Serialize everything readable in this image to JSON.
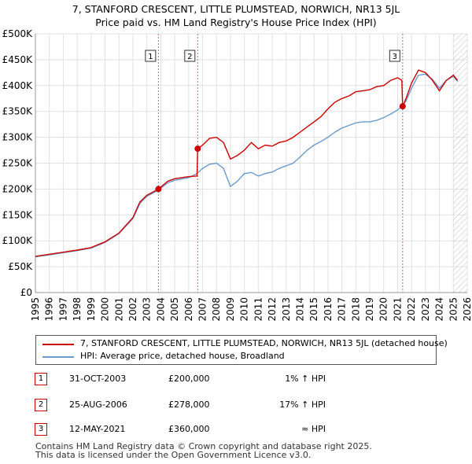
{
  "title_line1": "7, STANFORD CRESCENT, LITTLE PLUMSTEAD, NORWICH, NR13 5JL",
  "title_line2": "Price paid vs. HM Land Registry's House Price Index (HPI)",
  "colors": {
    "property": "#cc0000",
    "hpi": "#6a9bcc",
    "grid": "#e1e1e1",
    "marker_line": "#e06666",
    "future_hatch": "#aaaaaa"
  },
  "legend": {
    "property_label": "7, STANFORD CRESCENT, LITTLE PLUMSTEAD, NORWICH, NR13 5JL (detached house)",
    "hpi_label": "HPI: Average price, detached house, Broadland"
  },
  "sales": [
    {
      "num": "1",
      "date": "31-OCT-2003",
      "price": "£200,000",
      "hpi": "1% ↑ HPI"
    },
    {
      "num": "2",
      "date": "25-AUG-2006",
      "price": "£278,000",
      "hpi": "17% ↑ HPI"
    },
    {
      "num": "3",
      "date": "12-MAY-2021",
      "price": "£360,000",
      "hpi": "≈ HPI"
    }
  ],
  "footer": {
    "line1": "Contains HM Land Registry data © Crown copyright and database right 2025.",
    "line2": "This data is licensed under the Open Government Licence v3.0."
  },
  "chart_data": {
    "type": "line",
    "title": "7, STANFORD CRESCENT, LITTLE PLUMSTEAD, NORWICH, NR13 5JL - Price paid vs. HM Land Registry's House Price Index (HPI)",
    "xlabel": "",
    "ylabel": "",
    "xlim": [
      1995,
      2026
    ],
    "ylim": [
      0,
      500000
    ],
    "x_ticks": [
      1995,
      1996,
      1997,
      1998,
      1999,
      2000,
      2001,
      2002,
      2003,
      2004,
      2005,
      2006,
      2007,
      2008,
      2009,
      2010,
      2011,
      2012,
      2013,
      2014,
      2015,
      2016,
      2017,
      2018,
      2019,
      2020,
      2021,
      2022,
      2023,
      2024,
      2025,
      2026
    ],
    "y_ticks": [
      {
        "value": 0,
        "label": "£0"
      },
      {
        "value": 50000,
        "label": "£50K"
      },
      {
        "value": 100000,
        "label": "£100K"
      },
      {
        "value": 150000,
        "label": "£150K"
      },
      {
        "value": 200000,
        "label": "£200K"
      },
      {
        "value": 250000,
        "label": "£250K"
      },
      {
        "value": 300000,
        "label": "£300K"
      },
      {
        "value": 350000,
        "label": "£350K"
      },
      {
        "value": 400000,
        "label": "£400K"
      },
      {
        "value": 450000,
        "label": "£450K"
      },
      {
        "value": 500000,
        "label": "£500K"
      }
    ],
    "forecast_start": 2025.0,
    "series": [
      {
        "name": "7, STANFORD CRESCENT, LITTLE PLUMSTEAD, NORWICH, NR13 5JL (detached house)",
        "points": [
          [
            1995,
            70000
          ],
          [
            1996,
            74000
          ],
          [
            1997,
            78000
          ],
          [
            1998,
            82000
          ],
          [
            1999,
            87000
          ],
          [
            2000,
            98000
          ],
          [
            2001,
            115000
          ],
          [
            2002,
            145000
          ],
          [
            2002.5,
            175000
          ],
          [
            2003,
            188000
          ],
          [
            2003.83,
            200000
          ],
          [
            2004.5,
            215000
          ],
          [
            2005,
            220000
          ],
          [
            2006,
            224000
          ],
          [
            2006.6,
            225000
          ],
          [
            2006.65,
            278000
          ],
          [
            2007,
            285000
          ],
          [
            2007.5,
            298000
          ],
          [
            2008,
            300000
          ],
          [
            2008.5,
            290000
          ],
          [
            2009,
            258000
          ],
          [
            2009.5,
            265000
          ],
          [
            2010,
            275000
          ],
          [
            2010.5,
            290000
          ],
          [
            2011,
            278000
          ],
          [
            2011.5,
            285000
          ],
          [
            2012,
            283000
          ],
          [
            2012.5,
            290000
          ],
          [
            2013,
            293000
          ],
          [
            2013.5,
            300000
          ],
          [
            2014,
            310000
          ],
          [
            2014.5,
            320000
          ],
          [
            2015,
            330000
          ],
          [
            2015.5,
            340000
          ],
          [
            2016,
            355000
          ],
          [
            2016.5,
            368000
          ],
          [
            2017,
            375000
          ],
          [
            2017.5,
            380000
          ],
          [
            2018,
            388000
          ],
          [
            2018.5,
            390000
          ],
          [
            2019,
            392000
          ],
          [
            2019.5,
            398000
          ],
          [
            2020,
            400000
          ],
          [
            2020.5,
            410000
          ],
          [
            2021,
            415000
          ],
          [
            2021.3,
            410000
          ],
          [
            2021.36,
            360000
          ],
          [
            2021.6,
            375000
          ],
          [
            2022,
            405000
          ],
          [
            2022.5,
            430000
          ],
          [
            2023,
            425000
          ],
          [
            2023.5,
            410000
          ],
          [
            2024,
            390000
          ],
          [
            2024.5,
            410000
          ],
          [
            2025,
            420000
          ],
          [
            2025.3,
            410000
          ]
        ]
      },
      {
        "name": "HPI: Average price, detached house, Broadland",
        "points": [
          [
            1995,
            69000
          ],
          [
            1996,
            73000
          ],
          [
            1997,
            77000
          ],
          [
            1998,
            81000
          ],
          [
            1999,
            86000
          ],
          [
            2000,
            97000
          ],
          [
            2001,
            114000
          ],
          [
            2002,
            143000
          ],
          [
            2002.5,
            172000
          ],
          [
            2003,
            186000
          ],
          [
            2003.83,
            198000
          ],
          [
            2004.5,
            212000
          ],
          [
            2005,
            217000
          ],
          [
            2006,
            222000
          ],
          [
            2006.6,
            230000
          ],
          [
            2007,
            240000
          ],
          [
            2007.5,
            248000
          ],
          [
            2008,
            250000
          ],
          [
            2008.5,
            240000
          ],
          [
            2009,
            205000
          ],
          [
            2009.5,
            215000
          ],
          [
            2010,
            230000
          ],
          [
            2010.5,
            232000
          ],
          [
            2011,
            225000
          ],
          [
            2011.5,
            230000
          ],
          [
            2012,
            233000
          ],
          [
            2012.5,
            240000
          ],
          [
            2013,
            245000
          ],
          [
            2013.5,
            250000
          ],
          [
            2014,
            262000
          ],
          [
            2014.5,
            275000
          ],
          [
            2015,
            285000
          ],
          [
            2015.5,
            292000
          ],
          [
            2016,
            300000
          ],
          [
            2016.5,
            310000
          ],
          [
            2017,
            318000
          ],
          [
            2017.5,
            323000
          ],
          [
            2018,
            328000
          ],
          [
            2018.5,
            330000
          ],
          [
            2019,
            330000
          ],
          [
            2019.5,
            333000
          ],
          [
            2020,
            338000
          ],
          [
            2020.5,
            345000
          ],
          [
            2021,
            353000
          ],
          [
            2021.36,
            362000
          ],
          [
            2021.6,
            370000
          ],
          [
            2022,
            395000
          ],
          [
            2022.5,
            420000
          ],
          [
            2023,
            422000
          ],
          [
            2023.5,
            412000
          ],
          [
            2024,
            395000
          ],
          [
            2024.5,
            410000
          ],
          [
            2025,
            418000
          ],
          [
            2025.3,
            408000
          ]
        ]
      }
    ],
    "markers": [
      {
        "label": "1",
        "x": 2003.83,
        "y": 200000
      },
      {
        "label": "2",
        "x": 2006.65,
        "y": 278000
      },
      {
        "label": "3",
        "x": 2021.36,
        "y": 360000
      }
    ]
  }
}
